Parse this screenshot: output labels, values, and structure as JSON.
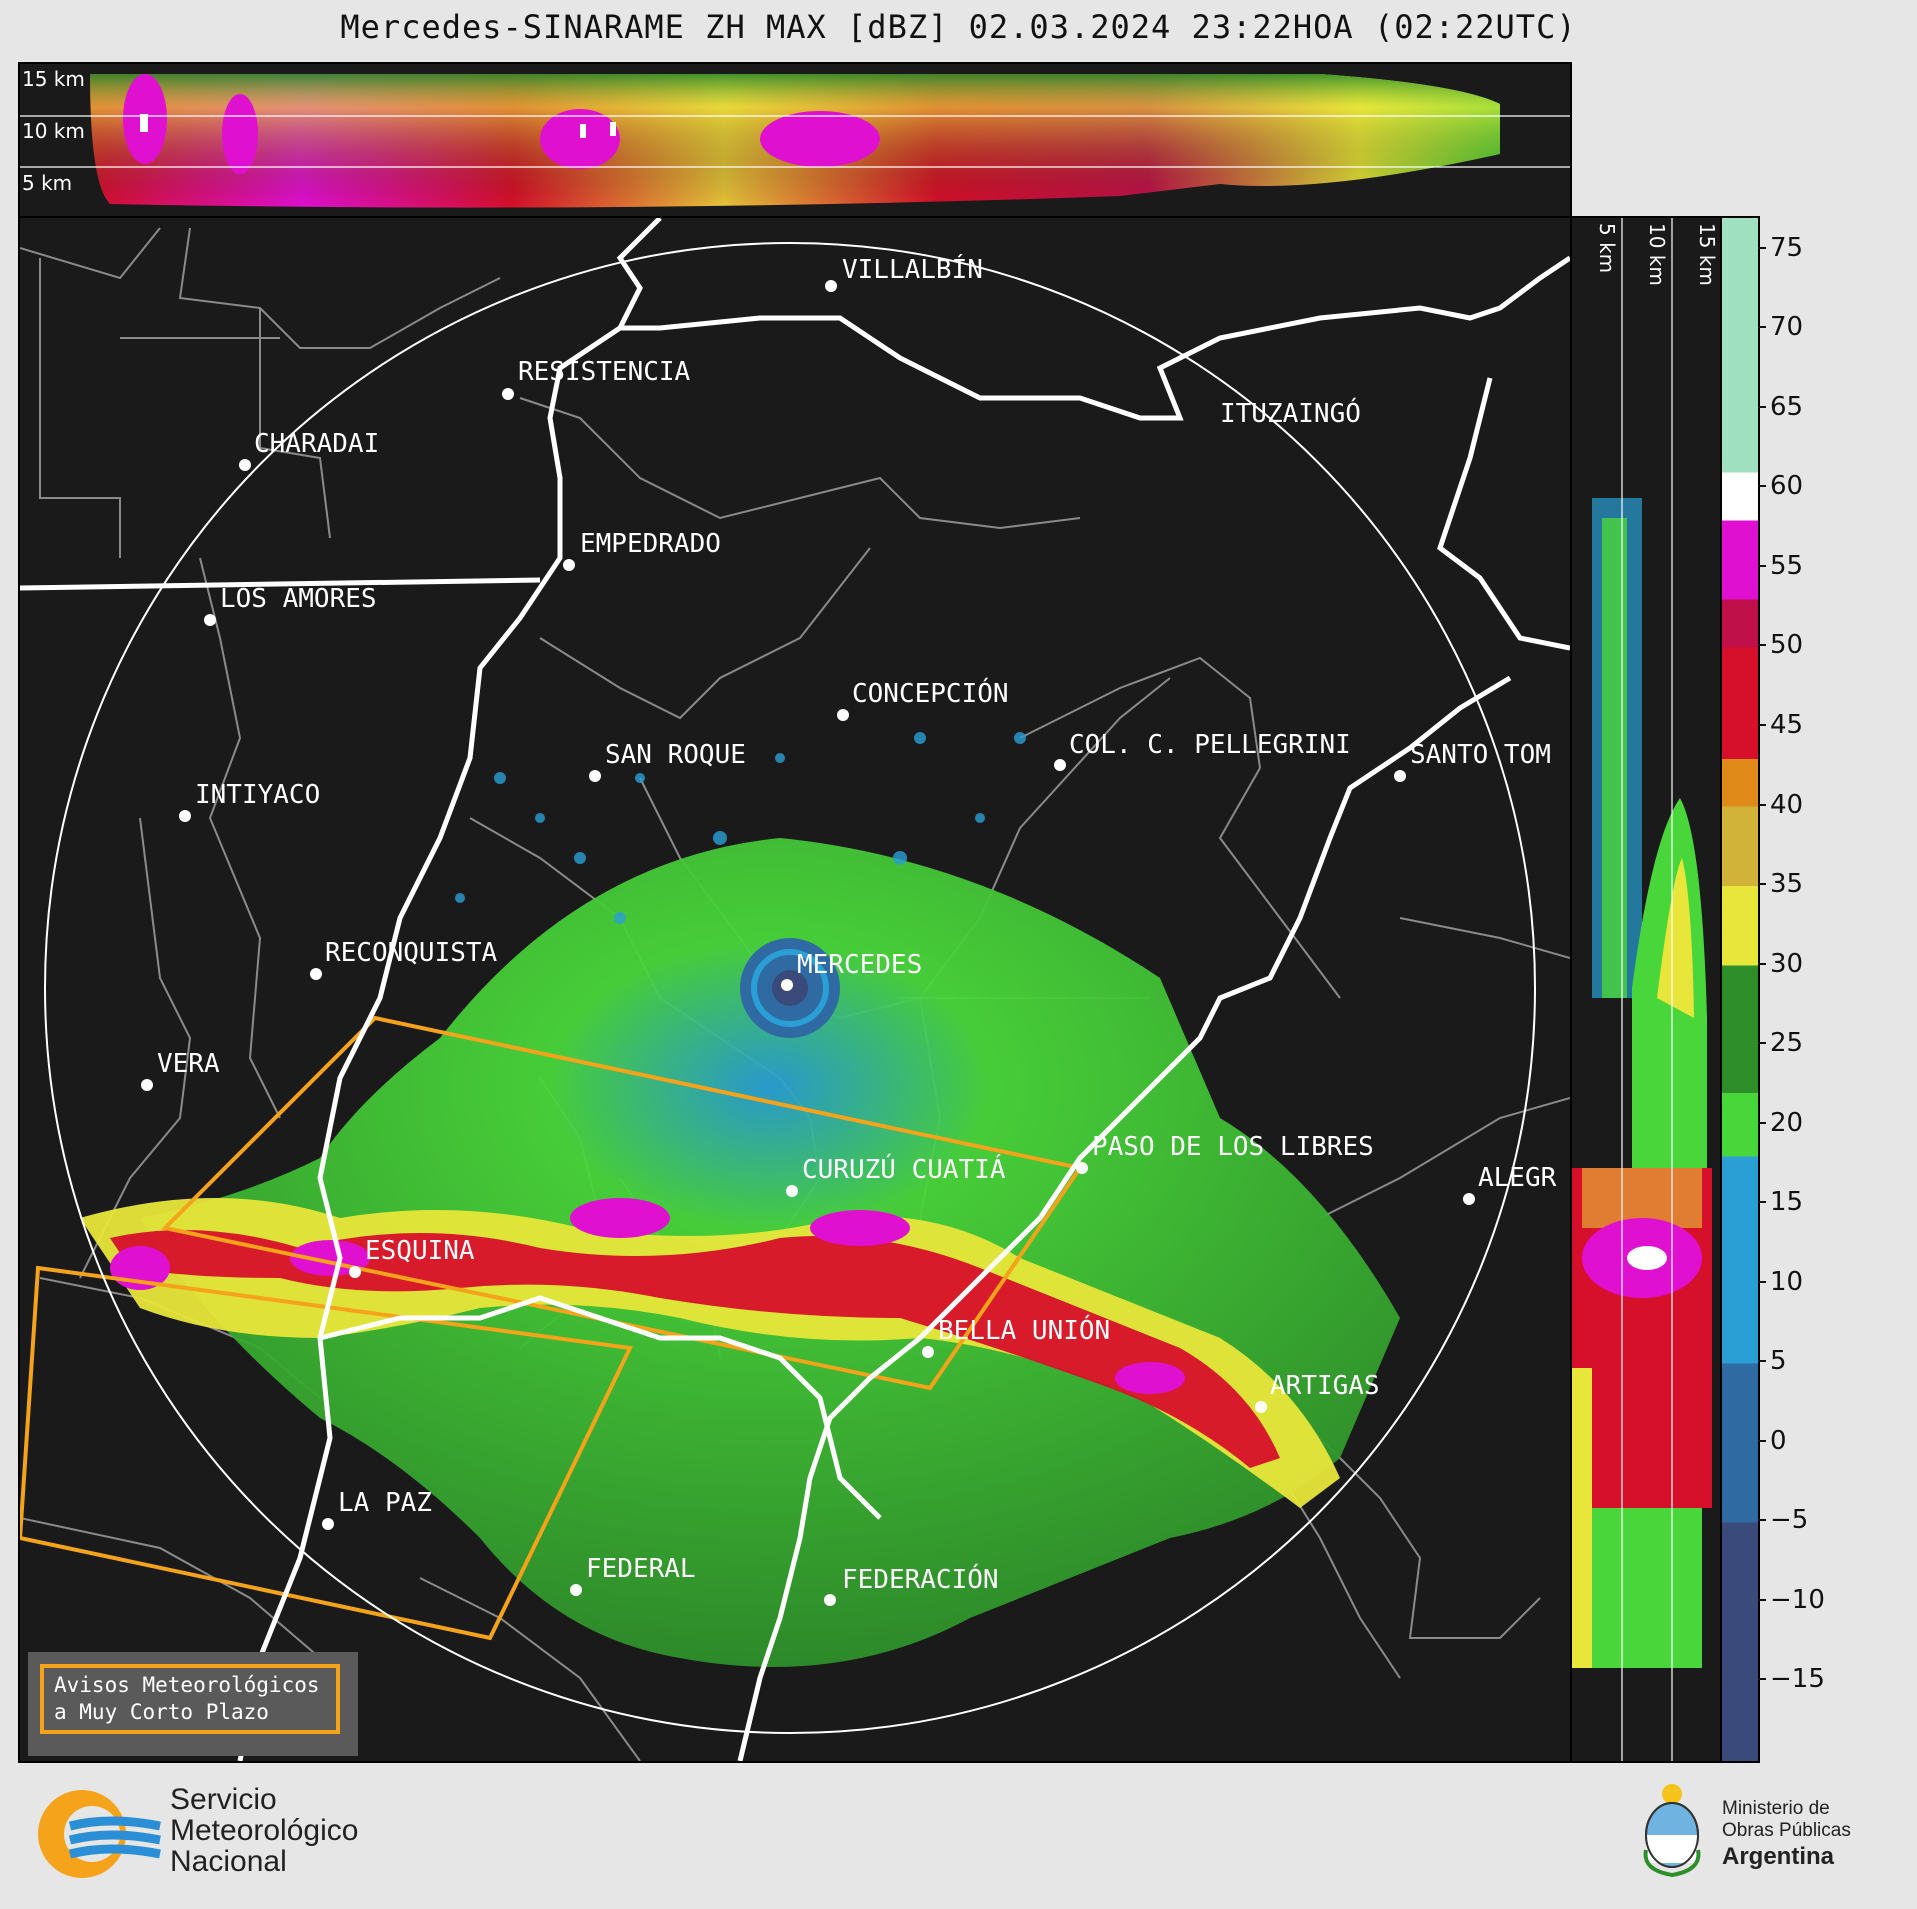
{
  "title": "Mercedes-SINARAME ZH MAX [dBZ] 02.03.2024 23:22HOA (02:22UTC)",
  "top_panel": {
    "height_labels": [
      "15 km",
      "10 km",
      "5 km"
    ]
  },
  "right_panel": {
    "height_labels": [
      "5 km",
      "10 km",
      "15 km"
    ]
  },
  "colorbar": {
    "unit": "dBZ",
    "ticks": [
      "75",
      "70",
      "65",
      "60",
      "55",
      "50",
      "45",
      "40",
      "35",
      "30",
      "25",
      "20",
      "15",
      "10",
      "5",
      "0",
      "−5",
      "−10",
      "−15"
    ],
    "tick_values": [
      75,
      70,
      65,
      60,
      55,
      50,
      45,
      40,
      35,
      30,
      25,
      20,
      15,
      10,
      5,
      0,
      -5,
      -10,
      -15
    ],
    "range": [
      -20,
      77
    ],
    "bands": [
      {
        "from": -20,
        "to": -5,
        "color": "#3a4a7a"
      },
      {
        "from": -5,
        "to": 5,
        "color": "#2f6aa3"
      },
      {
        "from": 5,
        "to": 18,
        "color": "#2a9fd6"
      },
      {
        "from": 18,
        "to": 22,
        "color": "#49d63a"
      },
      {
        "from": 22,
        "to": 30,
        "color": "#2e8f2a"
      },
      {
        "from": 30,
        "to": 35,
        "color": "#e8e63a"
      },
      {
        "from": 35,
        "to": 40,
        "color": "#d2b33a"
      },
      {
        "from": 40,
        "to": 43,
        "color": "#e08a1a"
      },
      {
        "from": 43,
        "to": 50,
        "color": "#d6102a"
      },
      {
        "from": 50,
        "to": 53,
        "color": "#c0104a"
      },
      {
        "from": 53,
        "to": 58,
        "color": "#e010d0"
      },
      {
        "from": 58,
        "to": 61,
        "color": "#ffffff"
      },
      {
        "from": 61,
        "to": 77,
        "color": "#9fe0c0"
      }
    ]
  },
  "cities": [
    {
      "name": "VILLALBÍN"
    },
    {
      "name": "RESISTENCIA"
    },
    {
      "name": "CHARADAI"
    },
    {
      "name": "ITUZAINGÓ"
    },
    {
      "name": "EMPEDRADO"
    },
    {
      "name": "LOS AMORES"
    },
    {
      "name": "CONCEPCIÓN"
    },
    {
      "name": "COL. C. PELLEGRINI"
    },
    {
      "name": "SANTO TOM"
    },
    {
      "name": "SAN ROQUE"
    },
    {
      "name": "INTIYACO"
    },
    {
      "name": "RECONQUISTA"
    },
    {
      "name": "MERCEDES"
    },
    {
      "name": "VERA"
    },
    {
      "name": "PASO DE LOS LIBRES"
    },
    {
      "name": "CURUZÚ CUATIÁ"
    },
    {
      "name": "ALEGR"
    },
    {
      "name": "ESQUINA"
    },
    {
      "name": "BELLA UNIÓN"
    },
    {
      "name": "ARTIGAS"
    },
    {
      "name": "LA PAZ"
    },
    {
      "name": "FEDERAL"
    },
    {
      "name": "FEDERACIÓN"
    }
  ],
  "warning_box": {
    "line1": "Avisos Meteorológicos",
    "line2": "a Muy Corto Plazo"
  },
  "logos": {
    "smn": [
      "Servicio",
      "Meteorológico",
      "Nacional"
    ],
    "ministry": [
      "Ministerio de",
      "Obras Públicas",
      "Argentina"
    ]
  },
  "colors": {
    "background": "#1a1a1a",
    "warning_polygon": "#f5a31a",
    "borders": "#8a8a8a",
    "rivers": "#ffffff"
  }
}
